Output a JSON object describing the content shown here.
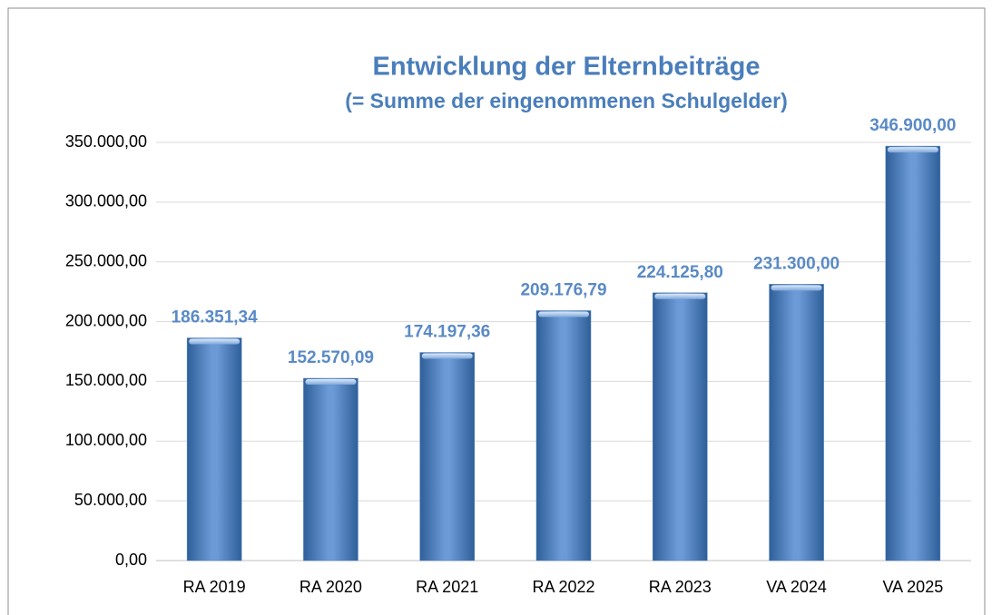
{
  "chart_data": {
    "type": "bar",
    "title": "Entwicklung der Elternbeiträge",
    "subtitle": "(= Summe der eingenommenen Schulgelder)",
    "categories": [
      "RA 2019",
      "RA 2020",
      "RA 2021",
      "RA 2022",
      "RA 2023",
      "VA 2024",
      "VA 2025"
    ],
    "values": [
      186351.34,
      152570.09,
      174197.36,
      209176.79,
      224125.8,
      231300.0,
      346900.0
    ],
    "value_labels": [
      "186.351,34",
      "152.570,09",
      "174.197,36",
      "209.176,79",
      "224.125,80",
      "231.300,00",
      "346.900,00"
    ],
    "color": "#4f81bd",
    "ylim": [
      0,
      350000
    ],
    "yticks": [
      {
        "value": 0,
        "label": "0,00"
      },
      {
        "value": 50000,
        "label": "50.000,00"
      },
      {
        "value": 100000,
        "label": "100.000,00"
      },
      {
        "value": 150000,
        "label": "150.000,00"
      },
      {
        "value": 200000,
        "label": "200.000,00"
      },
      {
        "value": 250000,
        "label": "250.000,00"
      },
      {
        "value": 300000,
        "label": "300.000,00"
      },
      {
        "value": 350000,
        "label": "350.000,00"
      }
    ],
    "grid": true
  }
}
